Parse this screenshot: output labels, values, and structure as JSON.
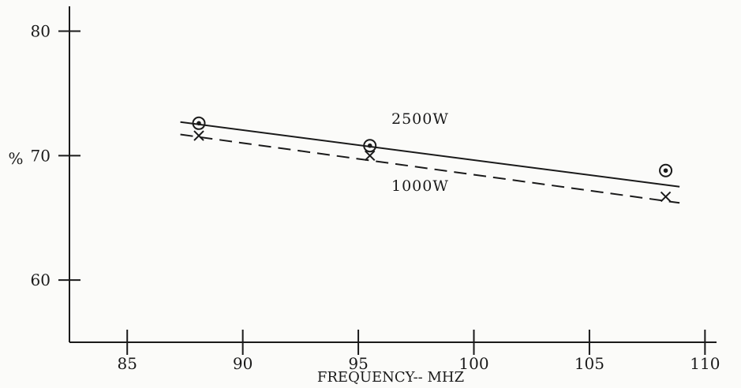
{
  "chart_data": {
    "type": "line",
    "xlabel": "FREQUENCY-- MHZ",
    "ylabel": "%",
    "xlim": [
      82.5,
      110.5
    ],
    "ylim": [
      55,
      82
    ],
    "x_ticks": [
      85,
      90,
      95,
      100,
      105,
      110
    ],
    "y_ticks": [
      60,
      70,
      80
    ],
    "grid": false,
    "series": [
      {
        "name": "2500W",
        "marker": "circled-dot",
        "line_style": "solid",
        "points": [
          {
            "x": 88.1,
            "y": 72.6
          },
          {
            "x": 95.5,
            "y": 70.8
          },
          {
            "x": 108.3,
            "y": 68.8
          }
        ],
        "fit_line": [
          {
            "x": 87.3,
            "y": 72.7
          },
          {
            "x": 108.9,
            "y": 67.5
          }
        ]
      },
      {
        "name": "1000W",
        "marker": "x",
        "line_style": "dashed",
        "points": [
          {
            "x": 88.1,
            "y": 71.6
          },
          {
            "x": 95.5,
            "y": 70.0
          },
          {
            "x": 108.3,
            "y": 66.7
          }
        ],
        "fit_line": [
          {
            "x": 87.3,
            "y": 71.7
          },
          {
            "x": 108.9,
            "y": 66.2
          }
        ]
      }
    ]
  }
}
